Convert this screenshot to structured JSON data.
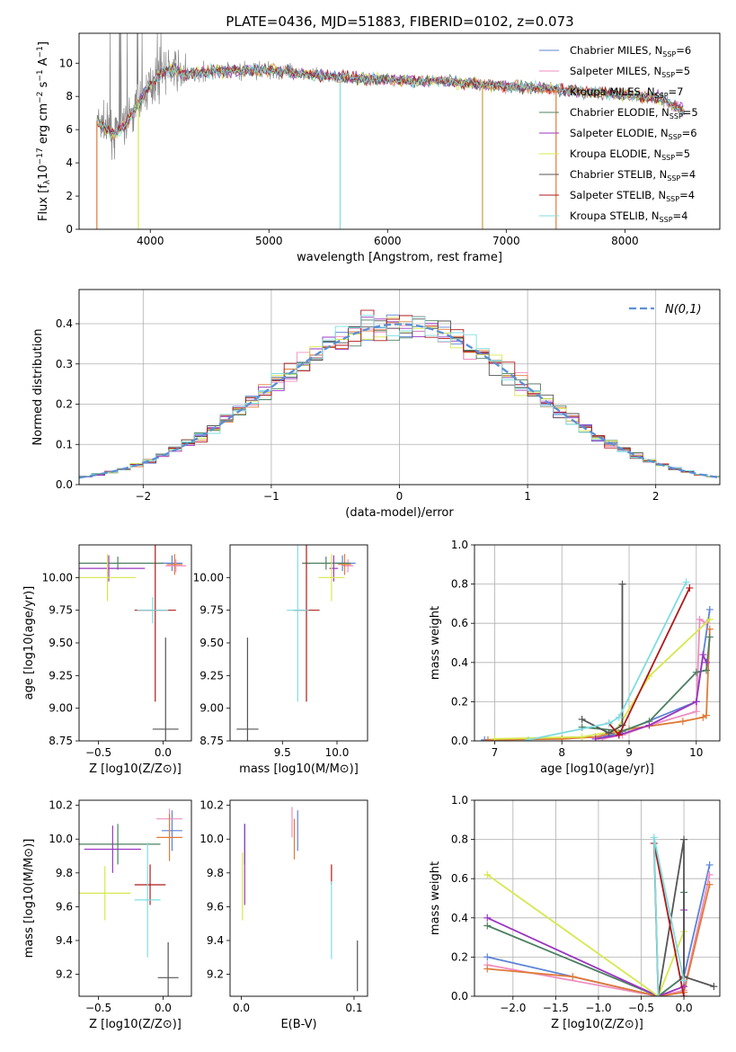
{
  "title": "PLATE=0436, MJD=51883, FIBERID=0102, z=0.073",
  "chart_data": [
    {
      "id": "spectrum",
      "type": "line",
      "xlabel": "wavelength [Angstrom, rest frame]",
      "ylabel": "Flux [f_λ 10^-17 erg cm^-2 s^-1 A^-1]",
      "xlim": [
        3400,
        8800
      ],
      "ylim": [
        0,
        11.8
      ],
      "xticks": [
        4000,
        5000,
        6000,
        7000,
        8000
      ],
      "yticks": [
        0,
        2,
        4,
        6,
        8,
        10
      ],
      "legend_position": "top-right",
      "series": [
        {
          "name": "Chabrier MILES, N_SSP=6",
          "color": "#5b84d6"
        },
        {
          "name": "Salpeter MILES, N_SSP=5",
          "color": "#f08ec0"
        },
        {
          "name": "Kroupa MILES, N_SSP=7",
          "color": "#e07b39"
        },
        {
          "name": "Chabrier ELODIE, N_SSP=5",
          "color": "#4c8060"
        },
        {
          "name": "Salpeter ELODIE, N_SSP=6",
          "color": "#9b36c0"
        },
        {
          "name": "Kroupa ELODIE, N_SSP=5",
          "color": "#d6e84c"
        },
        {
          "name": "Chabrier STELIB, N_SSP=4",
          "color": "#555555"
        },
        {
          "name": "Salpeter STELIB, N_SSP=4",
          "color": "#b01818"
        },
        {
          "name": "Kroupa STELIB, N_SSP=4",
          "color": "#7fdde0"
        }
      ],
      "observed_color": "#888888",
      "model_continuum": {
        "x": [
          3550,
          3700,
          3800,
          3900,
          4000,
          4100,
          4200,
          4300,
          4500,
          5000,
          5500,
          6000,
          6500,
          7000,
          7300,
          7600,
          8000,
          8300,
          8500
        ],
        "y": [
          6.5,
          5.7,
          6.4,
          7.6,
          8.7,
          9.5,
          9.6,
          9.3,
          9.5,
          9.6,
          9.2,
          9.0,
          8.9,
          8.6,
          8.5,
          8.3,
          8.1,
          7.9,
          7.1
        ]
      }
    },
    {
      "id": "residuals",
      "type": "histogram",
      "xlabel": "(data-model)/error",
      "ylabel": "Normed distribution",
      "xlim": [
        -2.5,
        2.5
      ],
      "ylim": [
        0,
        0.485
      ],
      "xticks": [
        -2,
        -1,
        0,
        1,
        2
      ],
      "yticks": [
        0.0,
        0.1,
        0.2,
        0.3,
        0.4
      ],
      "legend": "N(0,1)",
      "legend_position": "top-right",
      "bin_width": 0.1,
      "grid": true
    },
    {
      "id": "age-vs-Z",
      "type": "scatter",
      "xlabel": "Z [log10(Z/Z⊙)]",
      "ylabel": "age [log10(age/yr)]",
      "xlim": [
        -0.65,
        0.22
      ],
      "ylim": [
        8.75,
        10.25
      ],
      "xticks": [
        -0.5,
        0.0
      ],
      "yticks": [
        8.75,
        9.0,
        9.25,
        9.5,
        9.75,
        10.0
      ],
      "points": [
        {
          "x": 0.07,
          "y": 10.11,
          "xerr": 0.08,
          "yerr": 0.06,
          "s": 0
        },
        {
          "x": 0.1,
          "y": 10.09,
          "xerr": 0.08,
          "yerr": 0.05,
          "s": 1
        },
        {
          "x": 0.09,
          "y": 10.1,
          "xerr": 0.06,
          "yerr": 0.08,
          "s": 2
        },
        {
          "x": -0.35,
          "y": 10.11,
          "xerr": 0.35,
          "yerr": 0.05,
          "s": 3
        },
        {
          "x": -0.42,
          "y": 10.07,
          "xerr": 0.28,
          "yerr": 0.1,
          "s": 4
        },
        {
          "x": -0.43,
          "y": 10.0,
          "xerr": 0.22,
          "yerr": 0.18,
          "s": 5
        },
        {
          "x": 0.02,
          "y": 8.84,
          "xerr": 0.1,
          "yerr": 0.7,
          "s": 6
        },
        {
          "x": -0.06,
          "y": 9.75,
          "xerr": 0.16,
          "yerr": 0.7,
          "s": 7
        },
        {
          "x": -0.08,
          "y": 9.75,
          "xerr": 0.12,
          "yerr": 0.1,
          "s": 8
        }
      ]
    },
    {
      "id": "age-vs-mass",
      "type": "scatter",
      "xlabel": "mass [log10(M/M⊙)]",
      "ylabel": "",
      "xlim": [
        9.02,
        10.28
      ],
      "ylim": [
        8.75,
        10.25
      ],
      "xticks": [
        9.5,
        10.0
      ],
      "yticks": [
        8.75,
        9.0,
        9.25,
        9.5,
        9.75,
        10.0
      ],
      "points": [
        {
          "x": 10.05,
          "y": 10.11,
          "xerr": 0.12,
          "yerr": 0.06,
          "s": 0
        },
        {
          "x": 10.1,
          "y": 10.09,
          "xerr": 0.05,
          "yerr": 0.05,
          "s": 1
        },
        {
          "x": 10.07,
          "y": 10.1,
          "xerr": 0.06,
          "yerr": 0.08,
          "s": 2
        },
        {
          "x": 9.9,
          "y": 10.11,
          "xerr": 0.22,
          "yerr": 0.05,
          "s": 3
        },
        {
          "x": 9.97,
          "y": 10.07,
          "xerr": 0.04,
          "yerr": 0.1,
          "s": 4
        },
        {
          "x": 9.95,
          "y": 10.0,
          "xerr": 0.12,
          "yerr": 0.18,
          "s": 5
        },
        {
          "x": 9.18,
          "y": 8.84,
          "xerr": 0.1,
          "yerr": 0.7,
          "s": 6
        },
        {
          "x": 9.72,
          "y": 9.75,
          "xerr": 0.12,
          "yerr": 0.7,
          "s": 7
        },
        {
          "x": 9.64,
          "y": 9.75,
          "xerr": 0.1,
          "yerr": 0.7,
          "s": 8
        }
      ]
    },
    {
      "id": "weight-vs-age",
      "type": "line",
      "xlabel": "age [log10(age/yr)]",
      "ylabel": "mass weight",
      "xlim": [
        6.7,
        10.35
      ],
      "ylim": [
        0,
        1.0
      ],
      "xticks": [
        7,
        8,
        9,
        10
      ],
      "yticks": [
        0.0,
        0.2,
        0.4,
        0.6,
        0.8,
        1.0
      ],
      "grid": true,
      "series": [
        {
          "s": 0,
          "x": [
            6.85,
            8.6,
            8.85,
            10.0,
            10.2
          ],
          "y": [
            0.005,
            0.02,
            0.04,
            0.2,
            0.67
          ]
        },
        {
          "s": 1,
          "x": [
            8.6,
            8.9,
            9.3,
            10.0,
            10.05,
            10.15
          ],
          "y": [
            0.01,
            0.03,
            0.08,
            0.15,
            0.62,
            0.6
          ]
        },
        {
          "s": 2,
          "x": [
            6.9,
            8.0,
            8.5,
            9.0,
            9.8,
            10.1,
            10.15,
            10.2
          ],
          "y": [
            0.005,
            0.01,
            0.02,
            0.06,
            0.1,
            0.12,
            0.13,
            0.57
          ]
        },
        {
          "s": 3,
          "x": [
            8.3,
            8.9,
            9.3,
            10.0,
            10.15,
            10.2
          ],
          "y": [
            0.07,
            0.05,
            0.1,
            0.35,
            0.36,
            0.53
          ]
        },
        {
          "s": 4,
          "x": [
            8.5,
            8.85,
            9.3,
            10.0,
            10.1,
            10.15
          ],
          "y": [
            0.01,
            0.03,
            0.08,
            0.2,
            0.44,
            0.4
          ]
        },
        {
          "s": 5,
          "x": [
            7.0,
            8.3,
            8.8,
            9.3,
            10.2
          ],
          "y": [
            0.01,
            0.02,
            0.05,
            0.33,
            0.62
          ]
        },
        {
          "s": 6,
          "x": [
            8.3,
            8.7,
            8.9,
            8.9
          ],
          "y": [
            0.11,
            0.04,
            0.08,
            0.8
          ]
        },
        {
          "s": 7,
          "x": [
            8.7,
            8.85,
            9.9
          ],
          "y": [
            0.09,
            0.03,
            0.78
          ]
        },
        {
          "s": 8,
          "x": [
            7.5,
            8.7,
            8.85,
            9.85
          ],
          "y": [
            0.005,
            0.09,
            0.12,
            0.81
          ]
        }
      ]
    },
    {
      "id": "mass-vs-Z",
      "type": "scatter",
      "xlabel": "Z [log10(Z/Z⊙)]",
      "ylabel": "mass [log10(M/M⊙)]",
      "xlim": [
        -0.65,
        0.22
      ],
      "ylim": [
        9.07,
        10.23
      ],
      "xticks": [
        -0.5,
        0.0
      ],
      "yticks": [
        9.2,
        9.4,
        9.6,
        9.8,
        10.0,
        10.2
      ],
      "points": [
        {
          "x": 0.07,
          "y": 10.05,
          "xerr": 0.08,
          "yerr": 0.12,
          "s": 0
        },
        {
          "x": 0.05,
          "y": 10.12,
          "xerr": 0.1,
          "yerr": 0.06,
          "s": 1
        },
        {
          "x": 0.05,
          "y": 10.01,
          "xerr": 0.1,
          "yerr": 0.14,
          "s": 2
        },
        {
          "x": -0.35,
          "y": 9.97,
          "xerr": 0.33,
          "yerr": 0.12,
          "s": 3
        },
        {
          "x": -0.39,
          "y": 9.94,
          "xerr": 0.22,
          "yerr": 0.14,
          "s": 4
        },
        {
          "x": -0.45,
          "y": 9.68,
          "xerr": 0.2,
          "yerr": 0.16,
          "s": 5
        },
        {
          "x": 0.04,
          "y": 9.18,
          "xerr": 0.08,
          "yerr": 0.21,
          "s": 6
        },
        {
          "x": -0.1,
          "y": 9.73,
          "xerr": 0.12,
          "yerr": 0.12,
          "s": 7
        },
        {
          "x": -0.12,
          "y": 9.64,
          "xerr": 0.1,
          "yerr": 0.34,
          "s": 8
        }
      ]
    },
    {
      "id": "mass-vs-EBV",
      "type": "scatter",
      "xlabel": "E(B-V)",
      "ylabel": "",
      "xlim": [
        -0.01,
        0.112
      ],
      "ylim": [
        9.07,
        10.23
      ],
      "xticks": [
        0.0,
        0.1
      ],
      "yticks": [
        9.2,
        9.4,
        9.6,
        9.8,
        10.0,
        10.2
      ],
      "points": [
        {
          "x": 0.05,
          "y": 10.05,
          "yerr": 0.12,
          "s": 0
        },
        {
          "x": 0.045,
          "y": 10.1,
          "yerr": 0.09,
          "s": 1
        },
        {
          "x": 0.047,
          "y": 10.0,
          "yerr": 0.12,
          "s": 2
        },
        {
          "x": 0.003,
          "y": 9.97,
          "yerr": 0.12,
          "s": 3
        },
        {
          "x": 0.003,
          "y": 9.85,
          "yerr": 0.24,
          "s": 4
        },
        {
          "x": 0.001,
          "y": 9.72,
          "yerr": 0.2,
          "s": 5
        },
        {
          "x": 0.103,
          "y": 9.25,
          "yerr": 0.15,
          "s": 6
        },
        {
          "x": 0.08,
          "y": 9.79,
          "yerr": 0.06,
          "s": 7
        },
        {
          "x": 0.08,
          "y": 9.52,
          "yerr": 0.23,
          "s": 8
        }
      ]
    },
    {
      "id": "weight-vs-Z",
      "type": "line",
      "xlabel": "Z [log10(Z/Z⊙)]",
      "ylabel": "mass weight",
      "xlim": [
        -2.45,
        0.42
      ],
      "ylim": [
        0,
        1.0
      ],
      "xticks": [
        -2.0,
        -1.5,
        -1.0,
        -0.5,
        0.0
      ],
      "yticks": [
        0.0,
        0.2,
        0.4,
        0.6,
        0.8,
        1.0
      ],
      "grid": true,
      "series": [
        {
          "s": 0,
          "x": [
            -2.3,
            -0.3,
            0.0,
            0.3
          ],
          "y": [
            0.2,
            0.0,
            0.1,
            0.67
          ]
        },
        {
          "s": 1,
          "x": [
            -2.3,
            -0.3,
            0.0,
            0.3
          ],
          "y": [
            0.16,
            0.0,
            0.03,
            0.62
          ]
        },
        {
          "s": 2,
          "x": [
            -2.3,
            -1.3,
            -0.3,
            0.0,
            0.3
          ],
          "y": [
            0.14,
            0.1,
            0.0,
            0.02,
            0.57
          ]
        },
        {
          "s": 3,
          "x": [
            -2.3,
            -0.3,
            0.0,
            0.0
          ],
          "y": [
            0.36,
            0.0,
            0.1,
            0.53
          ]
        },
        {
          "s": 4,
          "x": [
            -2.3,
            -0.3,
            0.0,
            0.0
          ],
          "y": [
            0.4,
            0.0,
            0.05,
            0.44
          ]
        },
        {
          "s": 5,
          "x": [
            -2.3,
            -0.3,
            0.0
          ],
          "y": [
            0.62,
            0.0,
            0.33
          ]
        },
        {
          "s": 6,
          "x": [
            -0.3,
            0.0,
            0.0,
            0.35
          ],
          "y": [
            0.0,
            0.8,
            0.1,
            0.05
          ]
        },
        {
          "s": 7,
          "x": [
            -0.3,
            -0.35,
            0.0
          ],
          "y": [
            0.0,
            0.78,
            0.0
          ]
        },
        {
          "s": 8,
          "x": [
            -0.3,
            -0.35,
            0.0
          ],
          "y": [
            0.0,
            0.81,
            0.08
          ]
        }
      ]
    }
  ]
}
